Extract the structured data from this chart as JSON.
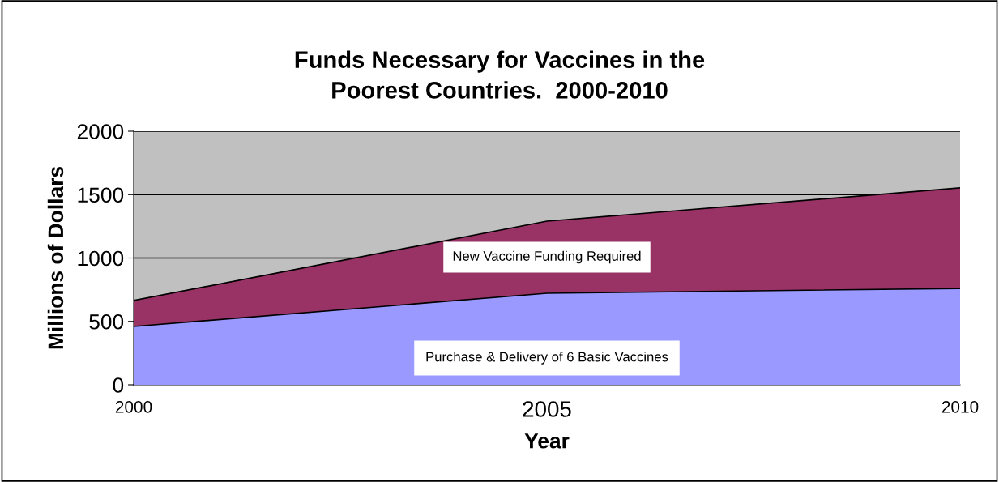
{
  "chart_data": {
    "type": "area",
    "title": "Funds Necessary for Vaccines in the\nPoorest Countries.  2000-2010",
    "xlabel": "Year",
    "ylabel": "Millions of Dollars",
    "categories": [
      "2000",
      "2005",
      "2010"
    ],
    "stacked": true,
    "series": [
      {
        "name": "Purchase & Delivery of 6 Basic Vaccines",
        "color": "#9999ff",
        "values": [
          460,
          722,
          760
        ]
      },
      {
        "name": "New Vaccine Funding Required",
        "color": "#993366",
        "values": [
          205,
          569,
          793
        ]
      }
    ],
    "ylim": [
      0,
      2000
    ],
    "yticks": [
      0,
      500,
      1000,
      1500,
      2000
    ],
    "grid": "y",
    "legend": false
  }
}
